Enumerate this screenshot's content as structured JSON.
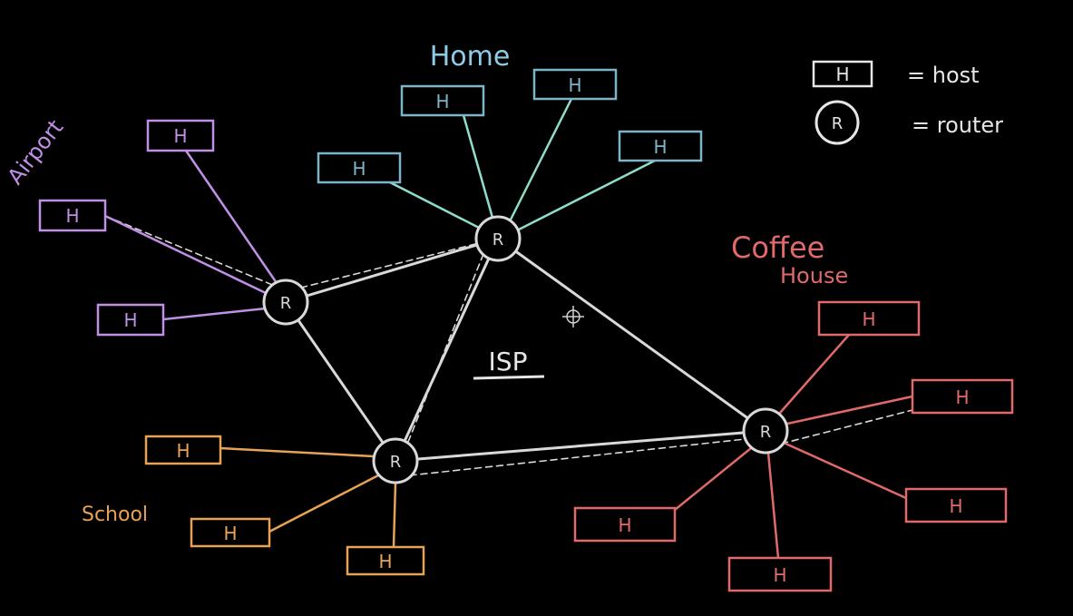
{
  "colors": {
    "background": "#000000",
    "core": "#d9d9d9",
    "airport": "#c08fe6",
    "home_text": "#8ecbe6",
    "home_box": "#7fb3c9",
    "home_link": "#8fdccc",
    "coffee": "#e06a6a",
    "school": "#e6a257",
    "legend": "#e6e6e6"
  },
  "labels": {
    "home": "Home",
    "airport": "Airport",
    "coffee_line1": "Coffee",
    "coffee_line2": "House",
    "school": "School",
    "isp": "ISP"
  },
  "legend": {
    "host_symbol": "H",
    "host_text": "= host",
    "router_symbol": "R",
    "router_text": "= router"
  },
  "host_label": "H",
  "router_label": "R"
}
